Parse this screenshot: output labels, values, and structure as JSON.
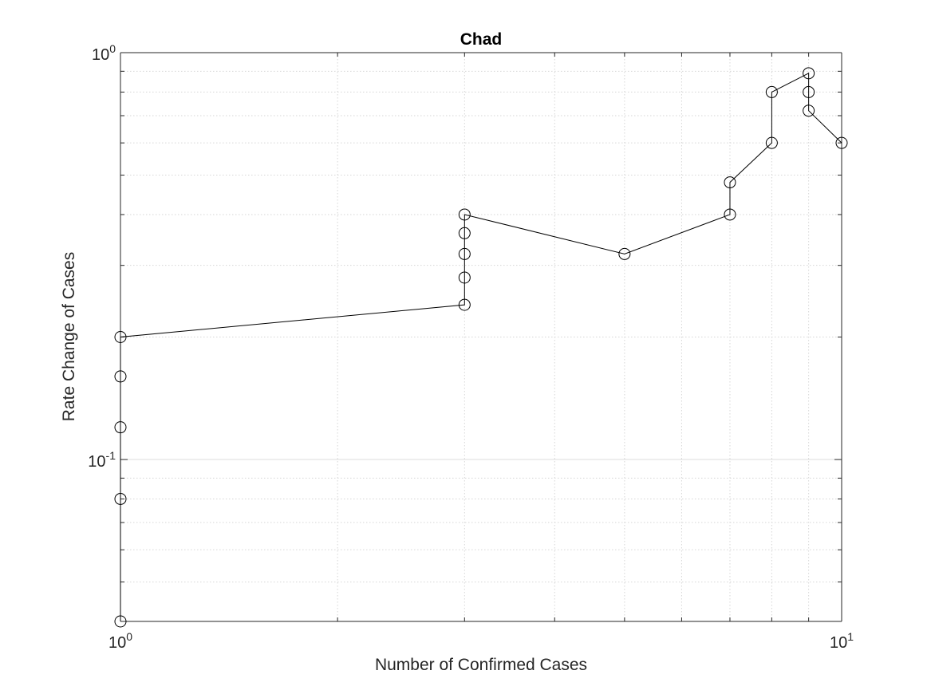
{
  "chart_data": {
    "type": "line",
    "title": "Chad",
    "xlabel": "Number of Confirmed Cases",
    "ylabel": "Rate Change of Cases",
    "x_scale": "log",
    "y_scale": "log",
    "xlim": [
      1,
      10
    ],
    "ylim": [
      0.04,
      1
    ],
    "grid": true,
    "minor_grid": true,
    "marker": "open-circle",
    "line_color": "#000000",
    "x_ticks": [
      {
        "value": 1,
        "base": "10",
        "exp": "0"
      },
      {
        "value": 10,
        "base": "10",
        "exp": "1"
      }
    ],
    "y_ticks": [
      {
        "value": 0.1,
        "base": "10",
        "exp": "-1"
      },
      {
        "value": 1,
        "base": "10",
        "exp": "0"
      }
    ],
    "series": [
      {
        "x": [
          1,
          1,
          1,
          1,
          1,
          3,
          3,
          3,
          3,
          3,
          5,
          7,
          7,
          8,
          8,
          9,
          9,
          9,
          10
        ],
        "y": [
          0.04,
          0.08,
          0.12,
          0.16,
          0.2,
          0.24,
          0.28,
          0.32,
          0.36,
          0.4,
          0.32,
          0.4,
          0.48,
          0.6,
          0.8,
          0.89,
          0.8,
          0.72,
          0.6
        ]
      }
    ]
  }
}
